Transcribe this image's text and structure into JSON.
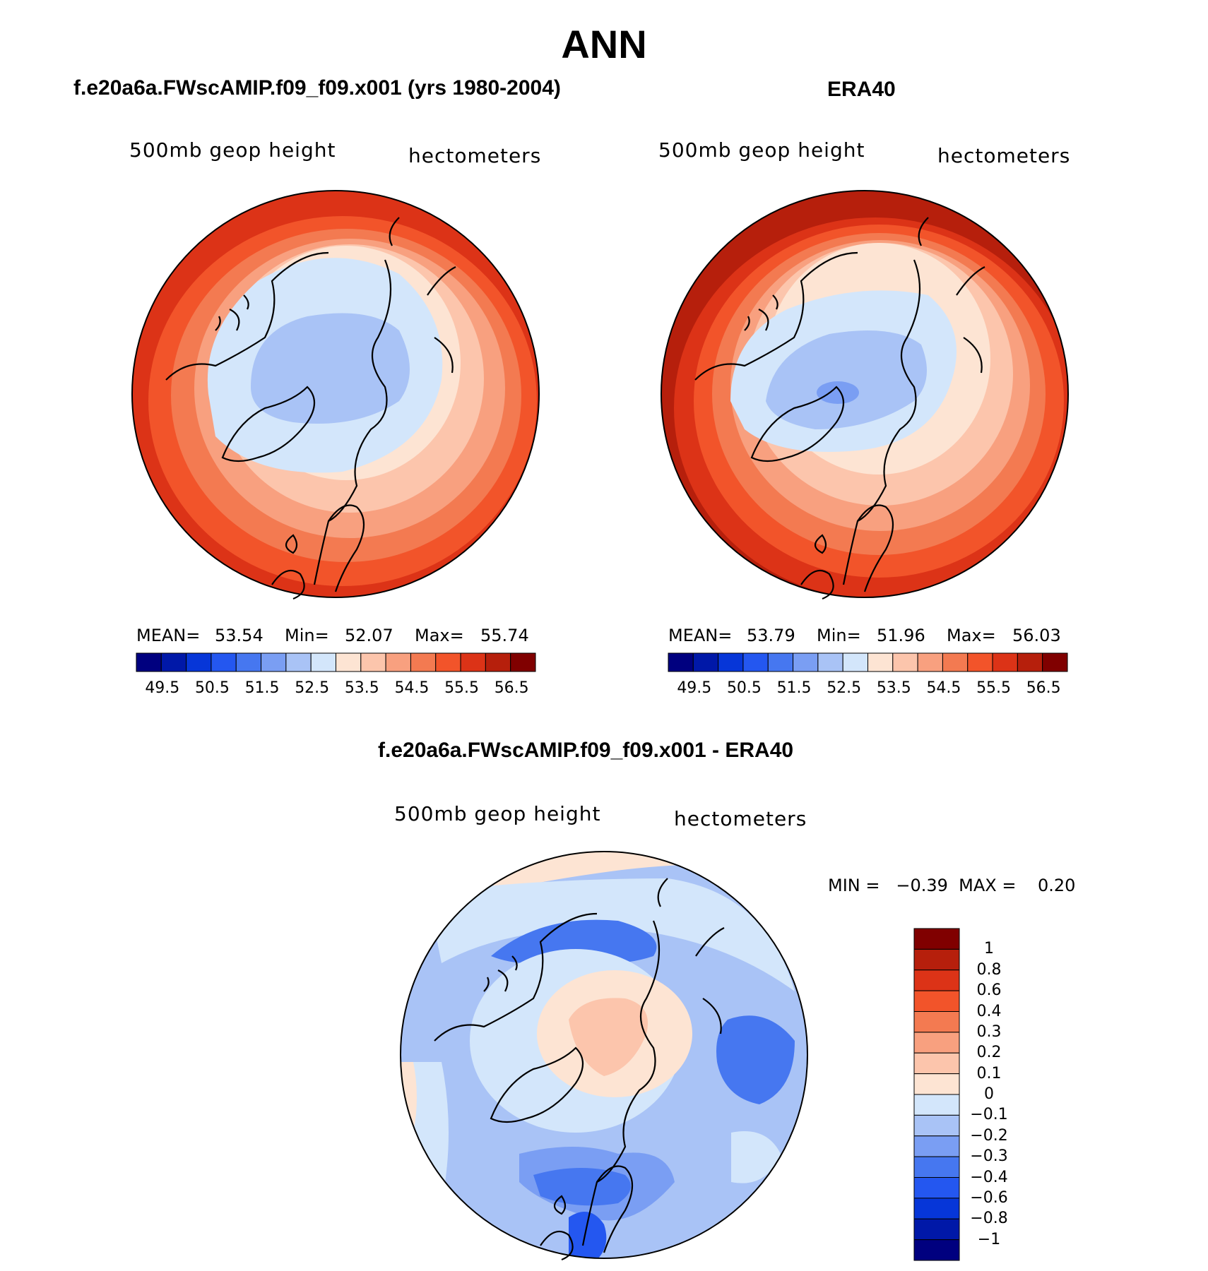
{
  "title": "ANN",
  "colors": {
    "levels": [
      "#00007f",
      "#0018a8",
      "#0636d8",
      "#2457f0",
      "#4677f0",
      "#7a9ef3",
      "#a9c3f6",
      "#d3e6fb",
      "#fde4d3",
      "#fcc5ac",
      "#f8a07f",
      "#f37a51",
      "#f2542a",
      "#dc3317",
      "#b61f0c",
      "#800000"
    ],
    "coast": "#000000"
  },
  "panels": [
    {
      "title": "f.e20a6a.FWscAMIP.f09_f09.x001 (yrs 1980-2004)",
      "variable": "500mb geop height",
      "units": "hectometers",
      "stats": {
        "mean_label": "MEAN=",
        "mean": "53.54",
        "min_label": "Min=",
        "min": "52.07",
        "max_label": "Max=",
        "max": "55.74"
      },
      "colorbar_ticks": [
        "49.5",
        "50.5",
        "51.5",
        "52.5",
        "53.5",
        "54.5",
        "55.5",
        "56.5"
      ]
    },
    {
      "title": "ERA40",
      "variable": "500mb geop height",
      "units": "hectometers",
      "stats": {
        "mean_label": "MEAN=",
        "mean": "53.79",
        "min_label": "Min=",
        "min": "51.96",
        "max_label": "Max=",
        "max": "56.03"
      },
      "colorbar_ticks": [
        "49.5",
        "50.5",
        "51.5",
        "52.5",
        "53.5",
        "54.5",
        "55.5",
        "56.5"
      ]
    }
  ],
  "diff": {
    "title": "f.e20a6a.FWscAMIP.f09_f09.x001 - ERA40",
    "variable": "500mb geop height",
    "units": "hectometers",
    "minmax": "MIN =   −0.39  MAX =    0.20",
    "colorbar_labels": [
      "1",
      "0.8",
      "0.6",
      "0.4",
      "0.3",
      "0.2",
      "0.1",
      "0",
      "−0.1",
      "−0.2",
      "−0.3",
      "−0.4",
      "−0.6",
      "−0.8",
      "−1"
    ]
  }
}
